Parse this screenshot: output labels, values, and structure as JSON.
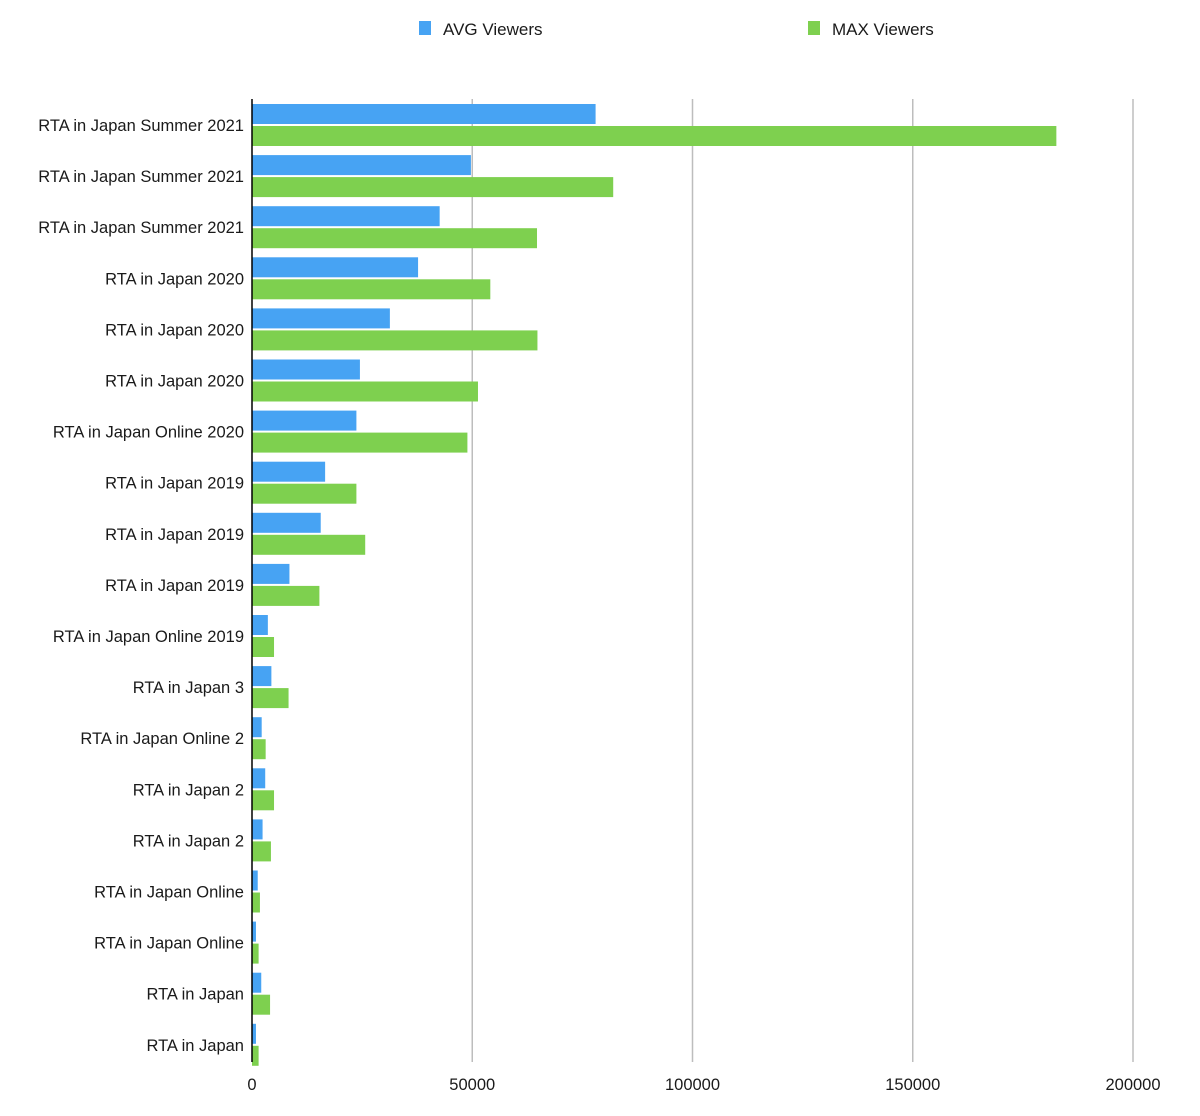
{
  "chart_data": {
    "type": "bar",
    "orientation": "horizontal",
    "title": "",
    "xlabel": "",
    "ylabel": "",
    "xlim": [
      0,
      200000
    ],
    "x_ticks": [
      0,
      50000,
      100000,
      150000,
      200000
    ],
    "x_tick_labels": [
      "0",
      "50000",
      "100000",
      "150000",
      "200000"
    ],
    "grid": "vertical",
    "legend_position": "top",
    "categories": [
      "RTA in Japan Summer 2021",
      "RTA in Japan Summer 2021",
      "RTA in Japan Summer 2021",
      "RTA in Japan 2020",
      "RTA in Japan 2020",
      "RTA in Japan 2020",
      "RTA in Japan Online 2020",
      "RTA in Japan 2019",
      "RTA in Japan 2019",
      "RTA in Japan 2019",
      "RTA in Japan Online 2019",
      "RTA in Japan 3",
      "RTA in Japan Online 2",
      "RTA in Japan 2",
      "RTA in Japan 2",
      "RTA in Japan Online",
      "RTA in Japan Online",
      "RTA in Japan",
      "RTA in Japan"
    ],
    "series": [
      {
        "name": "AVG Viewers",
        "color": "#47a3f3",
        "values": [
          78000,
          49700,
          42600,
          37700,
          31300,
          24500,
          23700,
          16600,
          15600,
          8500,
          3600,
          4400,
          2200,
          3000,
          2400,
          1300,
          900,
          2100,
          900
        ]
      },
      {
        "name": "MAX Viewers",
        "color": "#7ed04f",
        "values": [
          182600,
          82000,
          64700,
          54100,
          64800,
          51300,
          48900,
          23700,
          25700,
          15300,
          5000,
          8300,
          3100,
          5000,
          4300,
          1800,
          1500,
          4100,
          1500
        ]
      }
    ]
  }
}
